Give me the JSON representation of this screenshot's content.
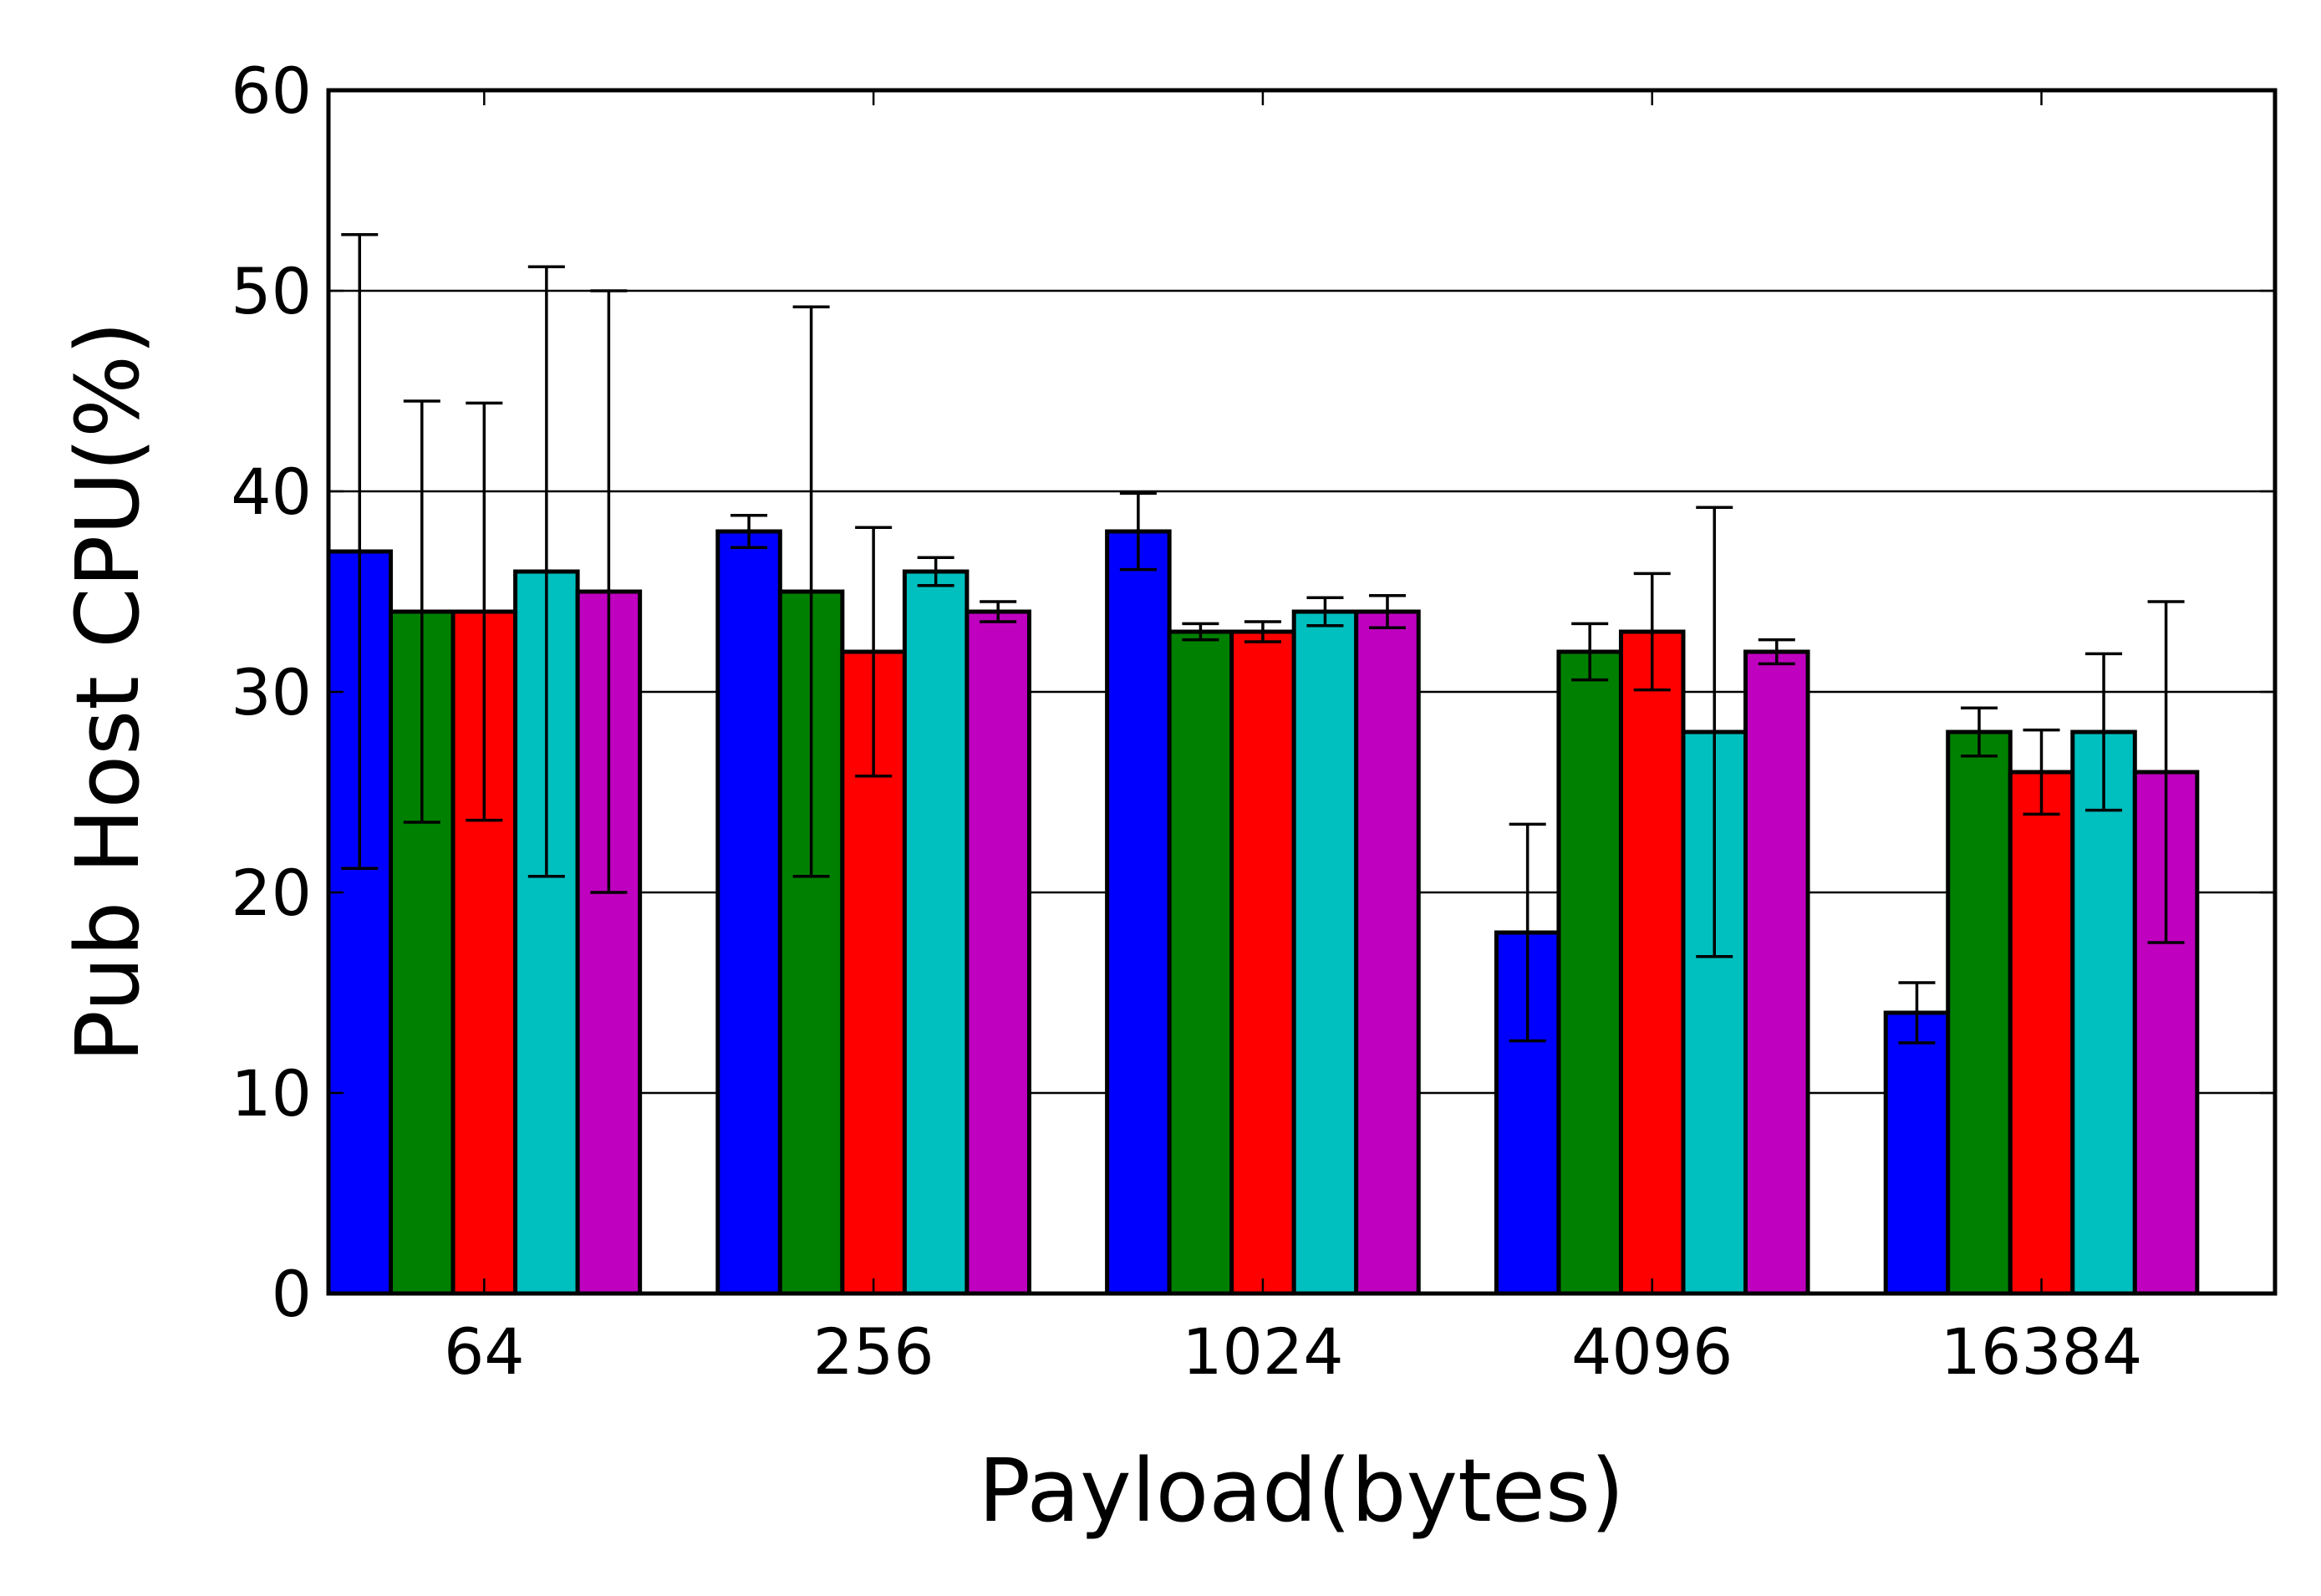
{
  "chart_data": {
    "type": "bar",
    "title": "",
    "xlabel": "Payload(bytes)",
    "ylabel": "Pub Host CPU(%)",
    "ylim": [
      0,
      60
    ],
    "yticks": [
      "0",
      "10",
      "20",
      "30",
      "40",
      "50",
      "60"
    ],
    "grid": "horizontal",
    "categories": [
      "64",
      "256",
      "1024",
      "4096",
      "16384"
    ],
    "series": [
      {
        "color": "#0000ff",
        "values": [
          37,
          38,
          38,
          18,
          14
        ],
        "error": [
          15.8,
          0.8,
          1.9,
          5.4,
          1.5
        ]
      },
      {
        "color": "#008000",
        "values": [
          34,
          35,
          33,
          32,
          28
        ],
        "error": [
          10.5,
          14.2,
          0.4,
          1.4,
          1.2
        ]
      },
      {
        "color": "#ff0000",
        "values": [
          34,
          32,
          33,
          33,
          26
        ],
        "error": [
          10.4,
          6.2,
          0.5,
          2.9,
          2.1
        ]
      },
      {
        "color": "#00bfbf",
        "values": [
          36,
          36,
          34,
          28,
          28
        ],
        "error": [
          15.2,
          0.7,
          0.7,
          11.2,
          3.9
        ]
      },
      {
        "color": "#bf00bf",
        "values": [
          35,
          34,
          34,
          32,
          26
        ],
        "error": [
          15.0,
          0.5,
          0.8,
          0.6,
          8.5
        ]
      }
    ]
  }
}
